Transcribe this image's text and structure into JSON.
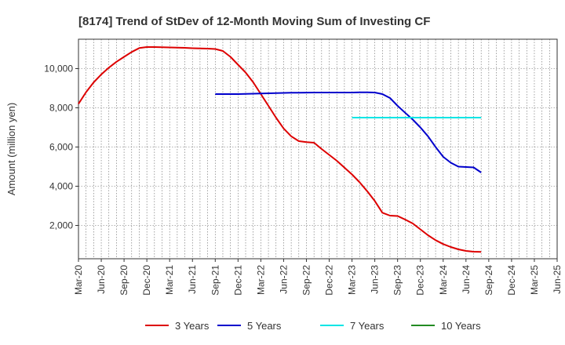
{
  "chart_data": {
    "type": "line",
    "title": "[8174]  Trend of StDev of 12-Month Moving Sum of Investing CF",
    "xlabel": "",
    "ylabel": "Amount (million yen)",
    "ylim": [
      300,
      11500
    ],
    "yticks": [
      2000,
      4000,
      6000,
      8000,
      10000
    ],
    "ytick_labels": [
      "2,000",
      "4,000",
      "6,000",
      "8,000",
      "10,000"
    ],
    "x_labels": [
      "Mar-20",
      "Jun-20",
      "Sep-20",
      "Dec-20",
      "Mar-21",
      "Jun-21",
      "Sep-21",
      "Dec-21",
      "Mar-22",
      "Jun-22",
      "Sep-22",
      "Dec-22",
      "Mar-23",
      "Jun-23",
      "Sep-23",
      "Dec-23",
      "Mar-24",
      "Jun-24",
      "Sep-24",
      "Dec-24",
      "Mar-25",
      "Jun-25"
    ],
    "grid": true,
    "legend_position": "bottom",
    "series": [
      {
        "name": "3 Years",
        "color": "#dd0000",
        "start": 0,
        "values": [
          8200,
          8800,
          9300,
          9700,
          10050,
          10350,
          10600,
          10850,
          11050,
          11100,
          11100,
          11090,
          11080,
          11070,
          11060,
          11040,
          11030,
          11020,
          11000,
          10900,
          10600,
          10200,
          9800,
          9300,
          8700,
          8100,
          7500,
          6950,
          6550,
          6300,
          6250,
          6220,
          5900,
          5600,
          5300,
          4950,
          4600,
          4200,
          3750,
          3250,
          2650,
          2500,
          2480,
          2300,
          2100,
          1800,
          1500,
          1250,
          1050,
          900,
          780,
          700,
          660,
          650
        ]
      },
      {
        "name": "5 Years",
        "color": "#0000cc",
        "start": 18,
        "values": [
          8700,
          8700,
          8700,
          8700,
          8710,
          8720,
          8730,
          8740,
          8750,
          8760,
          8770,
          8770,
          8775,
          8780,
          8780,
          8780,
          8780,
          8780,
          8780,
          8790,
          8790,
          8780,
          8700,
          8500,
          8100,
          7750,
          7400,
          7000,
          6550,
          6000,
          5500,
          5200,
          5000,
          4980,
          4960,
          4700
        ]
      },
      {
        "name": "7 Years",
        "color": "#00e5e5",
        "start": 36,
        "values": [
          7500,
          7500,
          7500,
          7500,
          7500,
          7500,
          7500,
          7500,
          7500,
          7500,
          7500,
          7500,
          7500,
          7500,
          7500,
          7500,
          7500,
          7500
        ]
      },
      {
        "name": "10 Years",
        "color": "#228B22",
        "start": 0,
        "values": []
      }
    ]
  }
}
